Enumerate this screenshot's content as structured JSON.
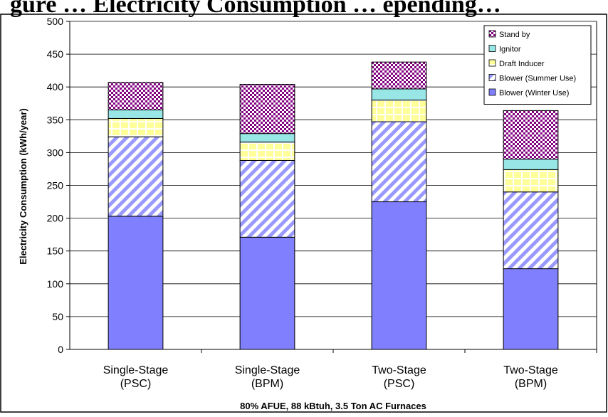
{
  "chart_data": {
    "type": "bar",
    "stacked": true,
    "title": "",
    "title_fragment": "gure … Electricity Consumption … epending…",
    "xlabel": "80% AFUE, 88 kBtuh, 3.5 Ton AC Furnaces",
    "ylabel": "Electricity Consumption (kWh/year)",
    "ylim": [
      0,
      500
    ],
    "yticks": [
      0,
      50,
      100,
      150,
      200,
      250,
      300,
      350,
      400,
      450,
      500
    ],
    "grid": true,
    "legend_position": "top-right",
    "categories": [
      [
        "Single-Stage",
        "(PSC)"
      ],
      [
        "Single-Stage",
        "(BPM)"
      ],
      [
        "Two-Stage",
        "(PSC)"
      ],
      [
        "Two-Stage",
        "(BPM)"
      ]
    ],
    "series": [
      {
        "name": "Blower (Winter Use)",
        "values": [
          203,
          171,
          225,
          123
        ],
        "color": "#8080ff",
        "pattern": "solid"
      },
      {
        "name": "Blower (Summer Use)",
        "values": [
          121,
          117,
          122,
          117
        ],
        "color": "#9999ff",
        "pattern": "diagonal-hatch"
      },
      {
        "name": "Draft Inducer",
        "values": [
          28,
          28,
          33,
          34
        ],
        "color": "#ffff99",
        "pattern": "grid"
      },
      {
        "name": "Ignitor",
        "values": [
          13,
          13,
          17,
          16
        ],
        "color": "#99e6e6",
        "pattern": "solid"
      },
      {
        "name": "Stand by",
        "values": [
          42,
          75,
          41,
          74
        ],
        "color": "#800080",
        "pattern": "checker"
      }
    ]
  }
}
